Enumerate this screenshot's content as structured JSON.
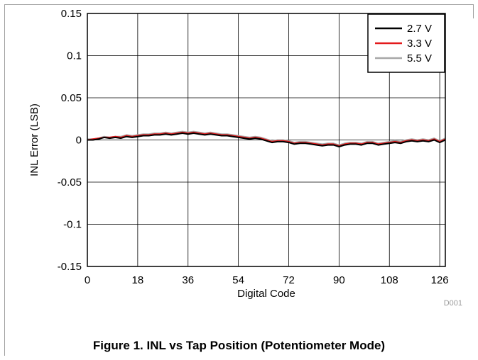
{
  "caption": "Figure 1. INL vs Tap Position (Potentiometer Mode)",
  "chart_data": {
    "type": "line",
    "xlabel": "Digital Code",
    "ylabel": "INL Error (LSB)",
    "xlim": [
      0,
      128
    ],
    "ylim": [
      -0.15,
      0.15
    ],
    "xticks": [
      0,
      18,
      36,
      54,
      72,
      90,
      108,
      126
    ],
    "yticks": [
      -0.15,
      -0.1,
      -0.05,
      0,
      0.05,
      0.1,
      0.15
    ],
    "ytick_labels": [
      "-0.15",
      "-0.1",
      "-0.05",
      "0",
      "0.05",
      "0.1",
      "0.15"
    ],
    "grid": true,
    "legend_position": "top-right",
    "watermark": "D001",
    "x": [
      0,
      2,
      4,
      6,
      8,
      10,
      12,
      14,
      16,
      18,
      20,
      22,
      24,
      26,
      28,
      30,
      32,
      34,
      36,
      38,
      40,
      42,
      44,
      46,
      48,
      50,
      52,
      54,
      56,
      58,
      60,
      62,
      64,
      66,
      68,
      70,
      72,
      74,
      76,
      78,
      80,
      82,
      84,
      86,
      88,
      90,
      92,
      94,
      96,
      98,
      100,
      102,
      104,
      106,
      108,
      110,
      112,
      114,
      116,
      118,
      120,
      122,
      124,
      126,
      128
    ],
    "series": [
      {
        "name": "2.7 V",
        "color": "#000000",
        "values": [
          0,
          0,
          0.001,
          0.003,
          0.002,
          0.003,
          0.002,
          0.004,
          0.003,
          0.004,
          0.005,
          0.005,
          0.006,
          0.006,
          0.007,
          0.006,
          0.007,
          0.008,
          0.007,
          0.008,
          0.007,
          0.006,
          0.007,
          0.006,
          0.005,
          0.005,
          0.004,
          0.003,
          0.002,
          0.001,
          0.002,
          0.001,
          -0.001,
          -0.003,
          -0.002,
          -0.002,
          -0.003,
          -0.005,
          -0.004,
          -0.004,
          -0.005,
          -0.006,
          -0.007,
          -0.006,
          -0.006,
          -0.008,
          -0.006,
          -0.005,
          -0.005,
          -0.006,
          -0.004,
          -0.004,
          -0.006,
          -0.005,
          -0.004,
          -0.003,
          -0.004,
          -0.002,
          -0.001,
          -0.002,
          -0.001,
          -0.002,
          0,
          -0.003,
          0
        ]
      },
      {
        "name": "3.3 V",
        "color": "#e31a1c",
        "values": [
          0,
          0.001,
          0.002,
          0.003,
          0.003,
          0.004,
          0.003,
          0.005,
          0.004,
          0.005,
          0.006,
          0.006,
          0.007,
          0.007,
          0.008,
          0.007,
          0.008,
          0.009,
          0.008,
          0.009,
          0.008,
          0.007,
          0.008,
          0.007,
          0.006,
          0.006,
          0.005,
          0.004,
          0.003,
          0.002,
          0.003,
          0.002,
          0,
          -0.002,
          -0.001,
          -0.001,
          -0.002,
          -0.004,
          -0.003,
          -0.003,
          -0.004,
          -0.005,
          -0.006,
          -0.005,
          -0.005,
          -0.007,
          -0.005,
          -0.004,
          -0.004,
          -0.005,
          -0.003,
          -0.003,
          -0.005,
          -0.004,
          -0.003,
          -0.002,
          -0.003,
          -0.001,
          0,
          -0.001,
          0,
          -0.001,
          0.001,
          -0.002,
          0.001
        ]
      },
      {
        "name": "5.5 V",
        "color": "#a8a8a8",
        "values": [
          0.001,
          0.001,
          0.002,
          0.004,
          0.003,
          0.004,
          0.004,
          0.006,
          0.005,
          0.006,
          0.007,
          0.007,
          0.008,
          0.008,
          0.009,
          0.008,
          0.009,
          0.01,
          0.009,
          0.01,
          0.009,
          0.008,
          0.009,
          0.008,
          0.007,
          0.007,
          0.006,
          0.005,
          0.004,
          0.003,
          0.004,
          0.003,
          0.001,
          -0.001,
          0,
          0,
          -0.001,
          -0.003,
          -0.002,
          -0.002,
          -0.003,
          -0.004,
          -0.005,
          -0.004,
          -0.004,
          -0.006,
          -0.004,
          -0.003,
          -0.003,
          -0.004,
          -0.002,
          -0.002,
          -0.004,
          -0.003,
          -0.002,
          -0.001,
          -0.002,
          0,
          0.001,
          0,
          0.001,
          0,
          0.002,
          -0.001,
          0.002
        ]
      }
    ]
  }
}
